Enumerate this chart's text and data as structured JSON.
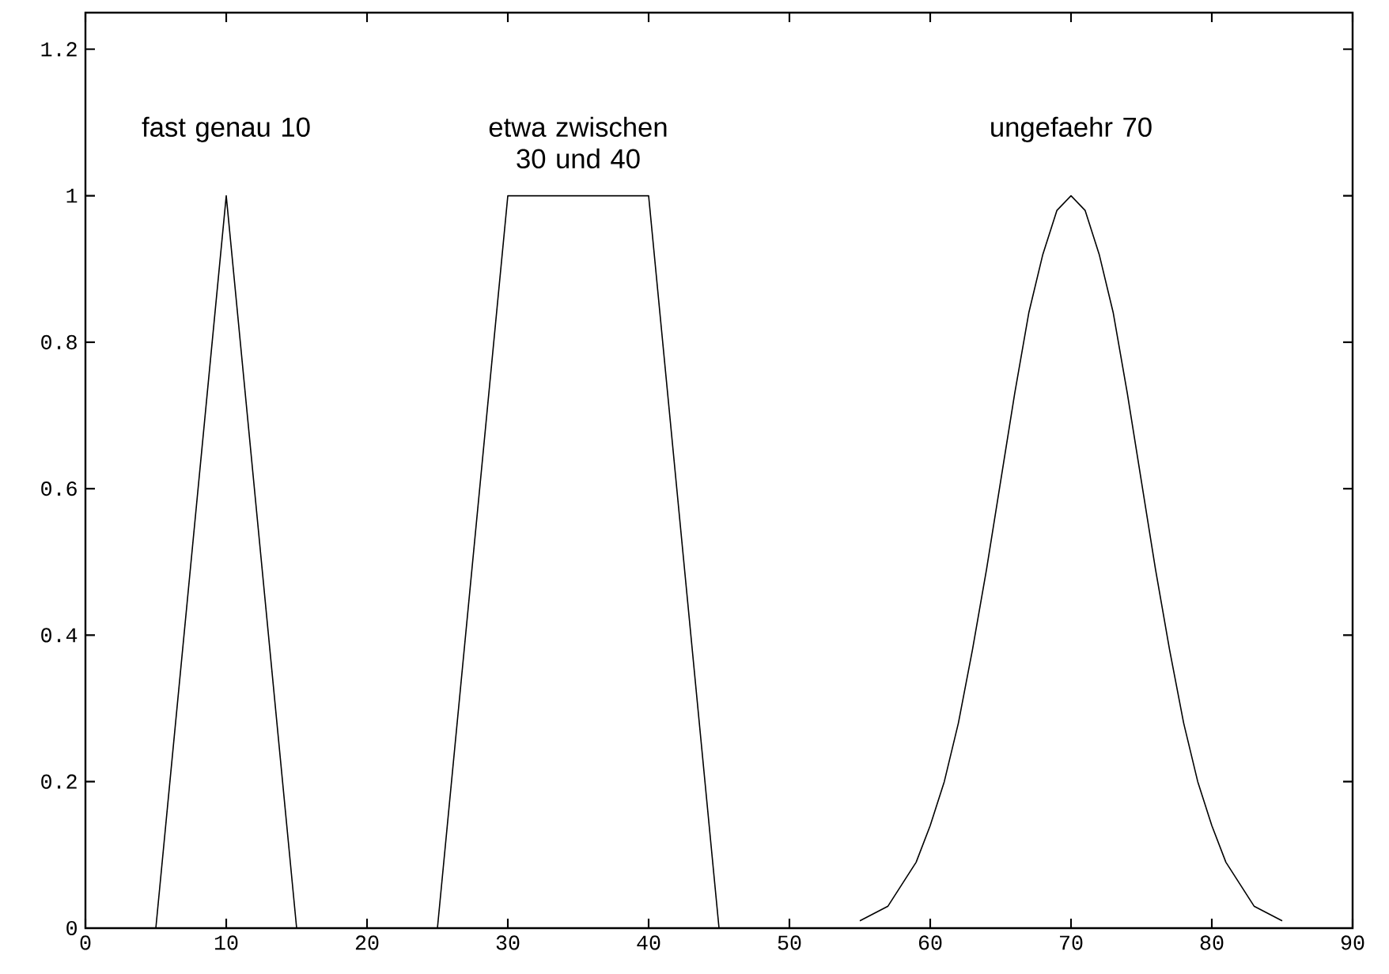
{
  "chart_data": {
    "type": "line",
    "color": "#000000",
    "series": [
      {
        "x": [
          5,
          10,
          15
        ],
        "values": [
          0,
          1,
          0
        ]
      },
      {
        "x": [
          25,
          30,
          40,
          45
        ],
        "values": [
          0,
          1,
          1,
          0
        ]
      },
      {
        "x": [
          55,
          56,
          57,
          58,
          59,
          60,
          61,
          62,
          63,
          64,
          65,
          66,
          67,
          68,
          69,
          70,
          71,
          72,
          73,
          74,
          75,
          76,
          77,
          78,
          79,
          80,
          81,
          82,
          83,
          84,
          85
        ],
        "values": [
          0.01,
          0.02,
          0.03,
          0.06,
          0.09,
          0.14,
          0.2,
          0.28,
          0.38,
          0.49,
          0.61,
          0.73,
          0.84,
          0.92,
          0.98,
          1,
          0.98,
          0.92,
          0.84,
          0.73,
          0.61,
          0.49,
          0.38,
          0.28,
          0.2,
          0.14,
          0.09,
          0.06,
          0.03,
          0.02,
          0.01
        ]
      }
    ],
    "annotations": [
      "fast genau 10",
      "etwa zwischen 30 und 40",
      "ungefaehr 70"
    ],
    "xlim": [
      0,
      90
    ],
    "xticks": [
      0,
      10,
      20,
      30,
      40,
      50,
      60,
      70,
      80,
      90
    ],
    "ylim": [
      0,
      1.25
    ],
    "yticks": [
      0,
      0.2,
      0.4,
      0.6,
      0.8,
      1,
      1.2
    ],
    "grid": false,
    "marker": "none",
    "line_style": "solid"
  }
}
